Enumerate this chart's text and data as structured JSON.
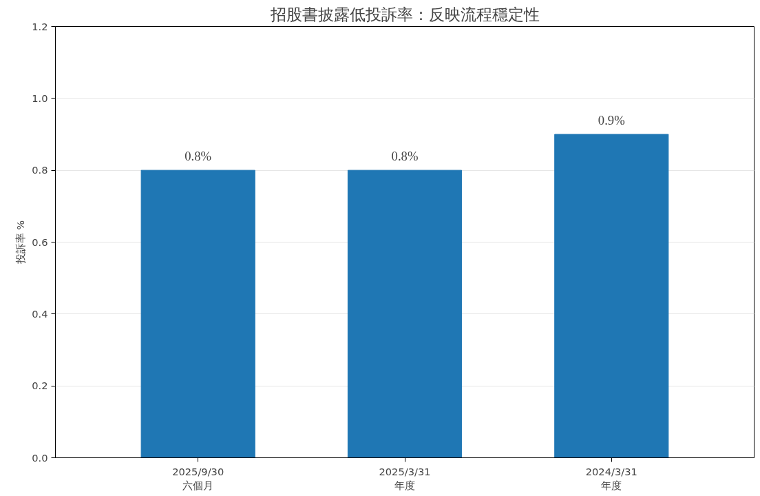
{
  "chart_data": {
    "type": "bar",
    "title": "招股書披露低投訴率：反映流程穩定性",
    "ylabel": "投訴率 %",
    "categories": [
      "2025/9/30\n六個月",
      "2025/3/31\n年度",
      "2024/3/31\n年度"
    ],
    "values": [
      0.8,
      0.8,
      0.9
    ],
    "color": "#1f77b4",
    "value_labels": [
      "0.8%",
      "0.8%",
      "0.9%"
    ],
    "ylim": [
      0,
      1.2
    ],
    "yticks": [
      {
        "value": 0,
        "label": "0.0"
      },
      {
        "value": 0.2,
        "label": "0.2"
      },
      {
        "value": 0.4,
        "label": "0.4"
      },
      {
        "value": 0.6,
        "label": "0.6"
      },
      {
        "value": 0.8,
        "label": "0.8"
      },
      {
        "value": 1,
        "label": "1.0"
      },
      {
        "value": 1.2,
        "label": "1.2"
      }
    ],
    "grid": "y"
  }
}
